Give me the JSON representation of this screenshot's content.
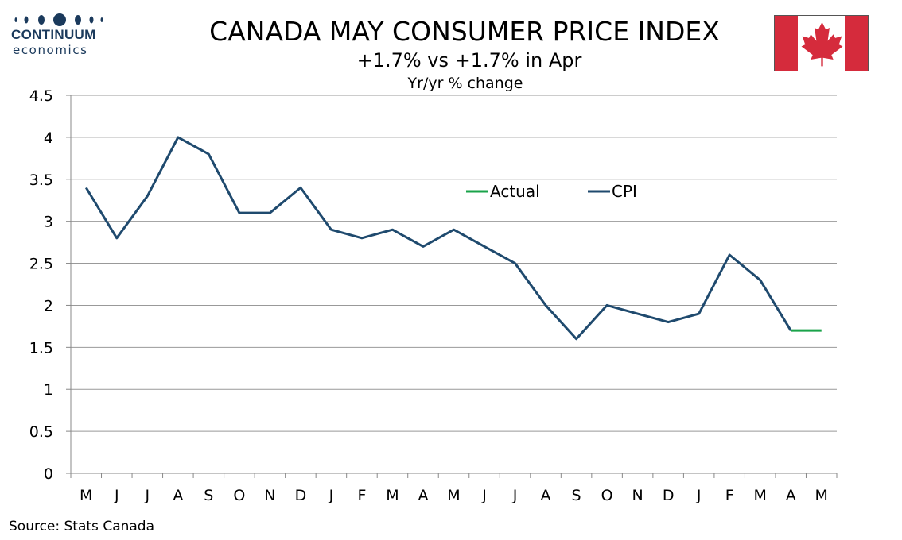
{
  "branding": {
    "name": "CONTINUUM",
    "sub": "economics"
  },
  "header": {
    "title": "CANADA MAY CONSUMER PRICE INDEX",
    "subtitle": "+1.7% vs +1.7% in Apr",
    "unit": "Yr/yr % change"
  },
  "footer": {
    "source": "Source: Stats Canada"
  },
  "colors": {
    "cpi": "#1f4a6e",
    "actual": "#1aa34a",
    "grid": "#999999",
    "flag_red": "#d52b3c"
  },
  "chart_data": {
    "type": "line",
    "categories": [
      "M",
      "J",
      "J",
      "A",
      "S",
      "O",
      "N",
      "D",
      "J",
      "F",
      "M",
      "A",
      "M",
      "J",
      "J",
      "A",
      "S",
      "O",
      "N",
      "D",
      "J",
      "F",
      "M",
      "A",
      "M"
    ],
    "series": [
      {
        "name": "CPI",
        "values": [
          3.4,
          2.8,
          3.3,
          4.0,
          3.8,
          3.1,
          3.1,
          3.4,
          2.9,
          2.8,
          2.9,
          2.7,
          2.9,
          2.7,
          2.5,
          2.0,
          1.6,
          2.0,
          1.9,
          1.8,
          1.9,
          2.6,
          2.3,
          1.7,
          null
        ]
      },
      {
        "name": "Actual",
        "values": [
          null,
          null,
          null,
          null,
          null,
          null,
          null,
          null,
          null,
          null,
          null,
          null,
          null,
          null,
          null,
          null,
          null,
          null,
          null,
          null,
          null,
          null,
          null,
          1.7,
          1.7
        ]
      }
    ],
    "ylim": [
      0,
      4.5
    ],
    "yticks": [
      "0",
      "0.5",
      "1",
      "1.5",
      "2",
      "2.5",
      "3",
      "3.5",
      "4",
      "4.5"
    ],
    "grid": true,
    "legend": {
      "placement": "upper-middle",
      "entries": [
        "Actual",
        "CPI"
      ]
    }
  }
}
